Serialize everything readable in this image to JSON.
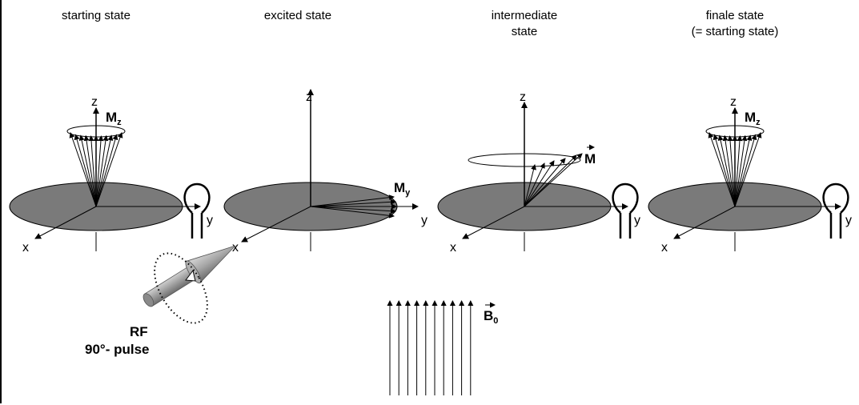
{
  "titles": {
    "starting": "starting state",
    "excited": "excited state",
    "intermediate_line1": "intermediate",
    "intermediate_line2": "state",
    "finale_line1": "finale state",
    "finale_line2": "(= starting state)"
  },
  "axes": {
    "x": "x",
    "y": "y",
    "z": "z"
  },
  "labels": {
    "mz_main": "M",
    "mz_sub": "z",
    "my_main": "M",
    "my_sub": "y",
    "m_main": "M",
    "b0_main": "B",
    "b0_sub": "0",
    "rf": "RF",
    "pulse": "90°- pulse"
  },
  "colors": {
    "disk": "#7a7a7a",
    "line": "#000000",
    "background": "#ffffff"
  }
}
